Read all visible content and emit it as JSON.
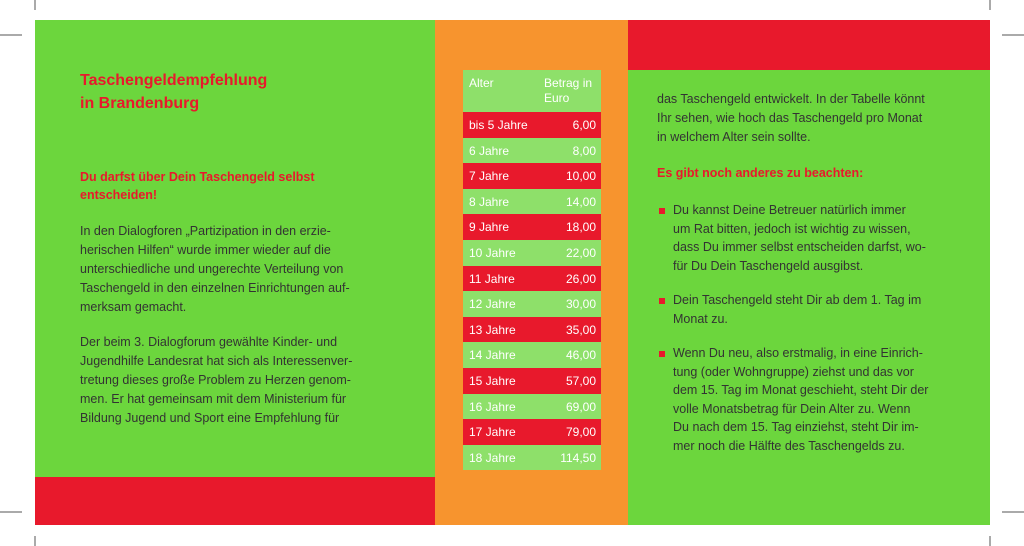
{
  "left": {
    "title": [
      "Taschengeldempfehlung",
      "in Brandenburg"
    ],
    "subtitle": [
      "Du darfst über Dein Taschengeld selbst",
      "entscheiden!"
    ],
    "paragraphs": [
      [
        "In den Dialogforen „Partizipation in den erzie-",
        "herischen Hilfen“ wurde immer wieder auf die",
        "unterschiedliche und ungerechte Verteilung von",
        "Taschengeld in den einzelnen Einrichtungen auf-",
        "merksam gemacht."
      ],
      [
        "Der beim 3. Dialogforum gewählte Kinder- und",
        "Jugendhilfe Landesrat hat sich als Interessenver-",
        "tretung dieses große Problem zu Herzen genom-",
        "men. Er hat gemeinsam mit dem Ministerium für",
        "Bildung Jugend und Sport eine Empfehlung für"
      ]
    ]
  },
  "table": {
    "header": [
      "Alter",
      "Betrag in Euro"
    ],
    "rows": [
      [
        "bis 5 Jahre",
        "6,00"
      ],
      [
        "6 Jahre",
        "8,00"
      ],
      [
        "7 Jahre",
        "10,00"
      ],
      [
        "8 Jahre",
        "14,00"
      ],
      [
        "9 Jahre",
        "18,00"
      ],
      [
        "10 Jahre",
        "22,00"
      ],
      [
        "11 Jahre",
        "26,00"
      ],
      [
        "12 Jahre",
        "30,00"
      ],
      [
        "13 Jahre",
        "35,00"
      ],
      [
        "14 Jahre",
        "46,00"
      ],
      [
        "15 Jahre",
        "57,00"
      ],
      [
        "16 Jahre",
        "69,00"
      ],
      [
        "17 Jahre",
        "79,00"
      ],
      [
        "18 Jahre",
        "114,50"
      ]
    ]
  },
  "right": {
    "paragraph": [
      "das Taschengeld entwickelt. In der Tabelle könnt",
      "Ihr sehen, wie hoch das Taschengeld pro Monat",
      "in welchem Alter sein sollte."
    ],
    "heading": "Es gibt noch anderes zu beachten:",
    "bullets": [
      [
        "Du kannst Deine Betreuer natürlich immer",
        "um Rat bitten, jedoch ist wichtig zu wissen,",
        "dass Du immer selbst entscheiden darfst, wo-",
        "für Du Dein Taschengeld ausgibst."
      ],
      [
        "Dein Taschengeld steht Dir ab dem 1. Tag im",
        "Monat zu."
      ],
      [
        "Wenn Du neu, also erstmalig, in eine Einrich-",
        "tung (oder Wohngruppe) ziehst und das vor",
        "dem 15. Tag im Monat geschieht, steht Dir der",
        "volle Monatsbetrag für Dein Alter zu. Wenn",
        "Du nach dem 15. Tag einziehst, steht Dir im-",
        "mer noch die Hälfte des Taschengelds zu."
      ]
    ]
  }
}
